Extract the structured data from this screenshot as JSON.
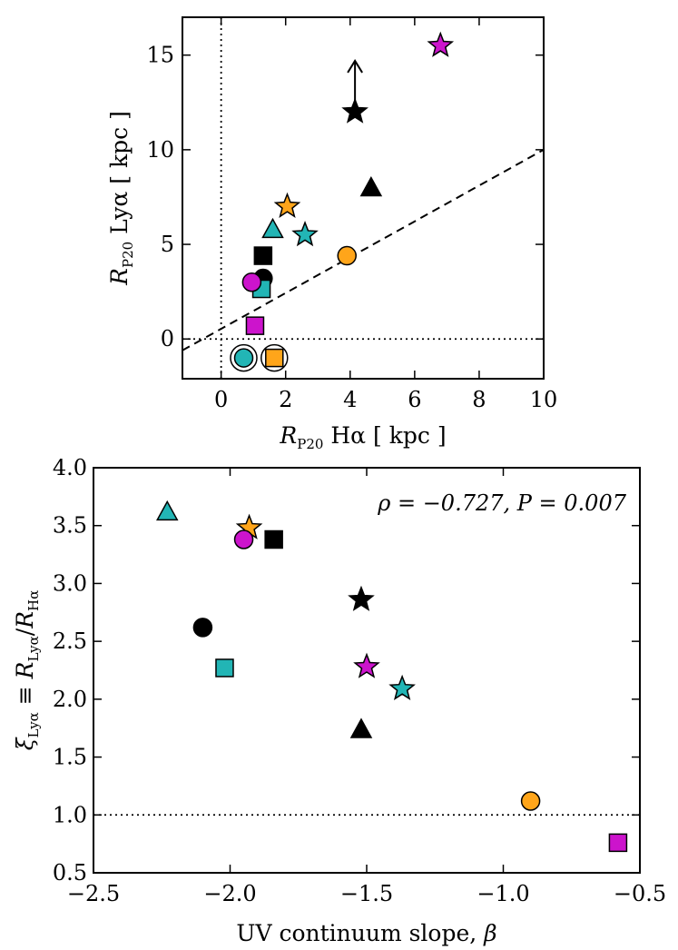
{
  "colors": {
    "black": "#000000",
    "cyan": "#22b5b5",
    "orange": "#ffa51a",
    "magenta": "#cc14cc"
  },
  "chart_data": [
    {
      "type": "scatter",
      "xlabel": "R_P20 Hα [ kpc ]",
      "ylabel": "R_P20 Lyα [ kpc ]",
      "xlim": [
        -1.2,
        10
      ],
      "ylim": [
        -2.1,
        17
      ],
      "xticks": [
        0,
        2,
        4,
        6,
        8,
        10
      ],
      "yticks": [
        0,
        5,
        10,
        15
      ],
      "xtick_labels": [
        "0",
        "2",
        "4",
        "6",
        "8",
        "10"
      ],
      "ytick_labels": [
        "0",
        "5",
        "10",
        "15"
      ],
      "reference_lines": [
        {
          "style": "dashed",
          "points": [
            [
              -1.2,
              -0.6
            ],
            [
              10,
              10
            ]
          ]
        },
        {
          "style": "dotted",
          "orientation": "horizontal",
          "value": 0
        },
        {
          "style": "dotted",
          "orientation": "vertical",
          "value": 0
        }
      ],
      "points": [
        {
          "x": 6.8,
          "y": 15.5,
          "marker": "star",
          "color": "magenta"
        },
        {
          "x": 4.15,
          "y": 12.0,
          "marker": "star",
          "color": "black",
          "lower_limit_to": 14.7
        },
        {
          "x": 4.65,
          "y": 8.0,
          "marker": "triangle",
          "color": "black"
        },
        {
          "x": 2.05,
          "y": 7.0,
          "marker": "star",
          "color": "orange"
        },
        {
          "x": 1.6,
          "y": 5.8,
          "marker": "triangle",
          "color": "cyan"
        },
        {
          "x": 2.6,
          "y": 5.5,
          "marker": "star",
          "color": "cyan"
        },
        {
          "x": 1.3,
          "y": 4.4,
          "marker": "square",
          "color": "black"
        },
        {
          "x": 3.9,
          "y": 4.4,
          "marker": "circle",
          "color": "orange"
        },
        {
          "x": 1.3,
          "y": 3.2,
          "marker": "circle",
          "color": "black"
        },
        {
          "x": 1.25,
          "y": 2.65,
          "marker": "square",
          "color": "cyan"
        },
        {
          "x": 0.95,
          "y": 3.0,
          "marker": "circle",
          "color": "magenta"
        },
        {
          "x": 1.05,
          "y": 0.7,
          "marker": "square",
          "color": "magenta"
        },
        {
          "x": 0.7,
          "y": -1.0,
          "marker": "circle",
          "color": "cyan",
          "ring": true
        },
        {
          "x": 1.65,
          "y": -1.0,
          "marker": "square",
          "color": "orange",
          "ring": true
        }
      ]
    },
    {
      "type": "scatter",
      "xlabel": "UV continuum slope, β",
      "ylabel": "ξ_Lyα ≡ R_Lyα / R_Hα",
      "annotation": "ρ = −0.727, P = 0.007",
      "xlim": [
        -2.5,
        -0.5
      ],
      "ylim": [
        0.5,
        4.0
      ],
      "xticks": [
        -2.5,
        -2.0,
        -1.5,
        -1.0,
        -0.5
      ],
      "yticks": [
        0.5,
        1.0,
        1.5,
        2.0,
        2.5,
        3.0,
        3.5,
        4.0
      ],
      "xtick_labels": [
        "−2.5",
        "−2.0",
        "−1.5",
        "−1.0",
        "−0.5"
      ],
      "ytick_labels": [
        "0.5",
        "1.0",
        "1.5",
        "2.0",
        "2.5",
        "3.0",
        "3.5",
        "4.0"
      ],
      "reference_lines": [
        {
          "style": "dotted",
          "orientation": "horizontal",
          "value": 1.0
        }
      ],
      "points": [
        {
          "x": -2.23,
          "y": 3.62,
          "marker": "triangle",
          "color": "cyan"
        },
        {
          "x": -1.93,
          "y": 3.48,
          "marker": "star",
          "color": "orange"
        },
        {
          "x": -1.95,
          "y": 3.38,
          "marker": "circle",
          "color": "magenta"
        },
        {
          "x": -1.84,
          "y": 3.38,
          "marker": "square",
          "color": "black"
        },
        {
          "x": -1.52,
          "y": 2.86,
          "marker": "star",
          "color": "black"
        },
        {
          "x": -2.1,
          "y": 2.62,
          "marker": "circle",
          "color": "black"
        },
        {
          "x": -1.5,
          "y": 2.28,
          "marker": "star",
          "color": "magenta"
        },
        {
          "x": -2.02,
          "y": 2.27,
          "marker": "square",
          "color": "cyan"
        },
        {
          "x": -1.37,
          "y": 2.09,
          "marker": "star",
          "color": "cyan"
        },
        {
          "x": -1.52,
          "y": 1.74,
          "marker": "triangle",
          "color": "black"
        },
        {
          "x": -0.9,
          "y": 1.12,
          "marker": "circle",
          "color": "orange"
        },
        {
          "x": -0.58,
          "y": 0.76,
          "marker": "square",
          "color": "magenta"
        }
      ]
    }
  ]
}
